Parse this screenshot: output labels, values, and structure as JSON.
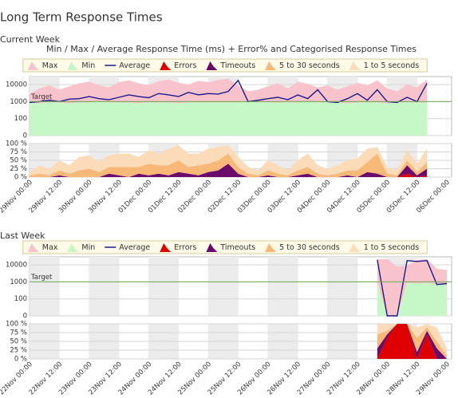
{
  "title": "Long Term Response Times",
  "chart_data": [
    {
      "type": "response",
      "heading": "Current Week",
      "title": "Min / Max / Average Response Time (ms) + Error% and Categorised Response Times",
      "categories": [
        "29Nov 00:00",
        null,
        null,
        "29Nov 12:00",
        null,
        null,
        "30Nov 00:00",
        null,
        null,
        "30Nov 12:00",
        null,
        null,
        "01Dec 00:00",
        null,
        null,
        "01Dec 12:00",
        null,
        null,
        "02Dec 00:00",
        null,
        null,
        "02Dec 12:00",
        null,
        null,
        "03Dec 00:00",
        null,
        null,
        "03Dec 12:00",
        null,
        null,
        "04Dec 00:00",
        null,
        null,
        "04Dec 12:00",
        null,
        null,
        "05Dec 00:00",
        null,
        null,
        "05Dec 12:00",
        null,
        null,
        "06Dec 00:00"
      ],
      "log_y": true,
      "grid": true,
      "ylim": [
        0,
        30000
      ],
      "yticks": [
        0,
        100,
        1000,
        10000
      ],
      "y2lim": [
        0,
        100
      ],
      "y2ticks": [
        {
          "value": 0,
          "label": "0 %"
        },
        {
          "value": 25,
          "label": "25 %"
        },
        {
          "value": 50,
          "label": "50 %"
        },
        {
          "value": 75,
          "label": "75 %"
        },
        {
          "value": 100,
          "label": "100 %"
        }
      ],
      "target": 1000,
      "target_label": "Target",
      "target_color": "#6aa84f",
      "series": [
        {
          "name": "Max",
          "style": "area",
          "color": "#f9c3cb",
          "values": [
            3000,
            6000,
            9000,
            5000,
            8000,
            12000,
            15000,
            9000,
            7000,
            14000,
            18000,
            12000,
            9000,
            16000,
            20000,
            13000,
            10000,
            17000,
            14000,
            19000,
            22000,
            9000,
            4000,
            5000,
            8000,
            12000,
            6000,
            15000,
            11000,
            7000,
            9000,
            5000,
            8000,
            13000,
            9000,
            18000,
            6000,
            4000,
            10000,
            7000,
            20000,
            null,
            null
          ]
        },
        {
          "name": "Min",
          "style": "area",
          "color": "#c6f7c6",
          "values": [
            900,
            800,
            900,
            900,
            800,
            900,
            900,
            1000,
            900,
            900,
            900,
            800,
            900,
            900,
            900,
            800,
            900,
            900,
            900,
            900,
            900,
            900,
            1000,
            900,
            900,
            900,
            900,
            900,
            1000,
            900,
            900,
            900,
            800,
            900,
            900,
            900,
            800,
            900,
            900,
            900,
            900,
            null,
            null
          ]
        },
        {
          "name": "Average",
          "style": "line",
          "color": "#1a1a8c",
          "values": [
            900,
            1000,
            1200,
            1000,
            1400,
            1500,
            2000,
            1500,
            1300,
            1800,
            2500,
            2000,
            1700,
            3000,
            2500,
            2000,
            3500,
            2500,
            3000,
            2800,
            4000,
            18000,
            1000,
            1200,
            1500,
            1800,
            1300,
            2500,
            1500,
            5000,
            1000,
            900,
            1500,
            3000,
            1200,
            5000,
            1000,
            900,
            1800,
            1000,
            12000,
            null,
            null
          ]
        },
        {
          "name": "Errors",
          "style": "area",
          "axis": "y2",
          "color": "#e00000",
          "values": [
            0,
            0,
            0,
            0,
            0,
            0,
            0,
            0,
            0,
            0,
            0,
            0,
            0,
            0,
            0,
            0,
            0,
            0,
            0,
            0,
            0,
            0,
            0,
            0,
            0,
            0,
            0,
            0,
            0,
            0,
            0,
            0,
            0,
            0,
            0,
            0,
            0,
            0,
            10,
            0,
            5,
            null,
            null
          ]
        },
        {
          "name": "Timeouts",
          "style": "area",
          "axis": "y2",
          "color": "#6b0a6b",
          "values": [
            0,
            0,
            0,
            5,
            0,
            0,
            0,
            0,
            10,
            5,
            0,
            10,
            5,
            10,
            5,
            15,
            10,
            5,
            15,
            20,
            40,
            10,
            0,
            0,
            5,
            0,
            0,
            5,
            10,
            0,
            0,
            0,
            5,
            0,
            15,
            10,
            0,
            0,
            25,
            5,
            20,
            null,
            null
          ]
        },
        {
          "name": "5 to 30 seconds",
          "style": "area",
          "axis": "y2",
          "color": "#f8b878",
          "values": [
            5,
            10,
            5,
            15,
            10,
            20,
            25,
            15,
            20,
            25,
            30,
            20,
            35,
            25,
            30,
            35,
            20,
            30,
            25,
            30,
            30,
            20,
            10,
            5,
            15,
            10,
            5,
            15,
            20,
            10,
            5,
            10,
            15,
            20,
            30,
            60,
            10,
            5,
            15,
            10,
            20,
            null,
            null
          ]
        },
        {
          "name": "1 to 5 seconds",
          "style": "area",
          "axis": "y2",
          "color": "#fcdcb8",
          "values": [
            10,
            25,
            20,
            30,
            25,
            40,
            40,
            30,
            35,
            40,
            40,
            30,
            40,
            35,
            50,
            45,
            40,
            35,
            45,
            40,
            25,
            30,
            20,
            15,
            30,
            25,
            15,
            30,
            40,
            25,
            20,
            25,
            30,
            35,
            40,
            20,
            20,
            15,
            30,
            25,
            40,
            null,
            null
          ]
        }
      ]
    },
    {
      "type": "response",
      "heading": "Last Week",
      "categories": [
        "22Nov 00:00",
        null,
        null,
        "22Nov 12:00",
        null,
        null,
        "23Nov 00:00",
        null,
        null,
        "23Nov 12:00",
        null,
        null,
        "24Nov 00:00",
        null,
        null,
        "24Nov 12:00",
        null,
        null,
        "25Nov 00:00",
        null,
        null,
        "25Nov 12:00",
        null,
        null,
        "26Nov 00:00",
        null,
        null,
        "26Nov 12:00",
        null,
        null,
        "27Nov 00:00",
        null,
        null,
        "27Nov 12:00",
        null,
        null,
        "28Nov 00:00",
        null,
        null,
        "28Nov 12:00",
        null,
        null,
        "29Nov 00:00"
      ],
      "log_y": true,
      "grid": true,
      "ylim": [
        0,
        30000
      ],
      "yticks": [
        0,
        100,
        1000,
        10000
      ],
      "y2lim": [
        0,
        100
      ],
      "y2ticks": [
        {
          "value": 0,
          "label": "0 %"
        },
        {
          "value": 25,
          "label": "25 %"
        },
        {
          "value": 50,
          "label": "50 %"
        },
        {
          "value": 75,
          "label": "75 %"
        },
        {
          "value": 100,
          "label": "100 %"
        }
      ],
      "target": 1000,
      "target_label": "Target",
      "target_color": "#6aa84f",
      "series": [
        {
          "name": "Max",
          "style": "area",
          "color": "#f9c3cb",
          "values": [
            null,
            null,
            null,
            null,
            null,
            null,
            null,
            null,
            null,
            null,
            null,
            null,
            null,
            null,
            null,
            null,
            null,
            null,
            null,
            null,
            null,
            null,
            null,
            null,
            null,
            null,
            null,
            null,
            null,
            null,
            null,
            null,
            null,
            null,
            null,
            22000,
            22000,
            8000,
            9000,
            20000,
            22000,
            6000,
            5000
          ]
        },
        {
          "name": "Min",
          "style": "area",
          "color": "#c6f7c6",
          "values": [
            null,
            null,
            null,
            null,
            null,
            null,
            null,
            null,
            null,
            null,
            null,
            null,
            null,
            null,
            null,
            null,
            null,
            null,
            null,
            null,
            null,
            null,
            null,
            null,
            null,
            null,
            null,
            null,
            null,
            null,
            null,
            null,
            null,
            null,
            null,
            1000,
            0,
            0,
            900,
            800,
            900,
            700,
            700
          ]
        },
        {
          "name": "Average",
          "style": "line",
          "color": "#1a1a8c",
          "values": [
            null,
            null,
            null,
            null,
            null,
            null,
            null,
            null,
            null,
            null,
            null,
            null,
            null,
            null,
            null,
            null,
            null,
            null,
            null,
            null,
            null,
            null,
            null,
            null,
            null,
            null,
            null,
            null,
            null,
            null,
            null,
            null,
            null,
            null,
            null,
            20000,
            0,
            0,
            18000,
            16000,
            18000,
            700,
            800
          ]
        },
        {
          "name": "Errors",
          "style": "area",
          "axis": "y2",
          "color": "#e00000",
          "values": [
            null,
            null,
            null,
            null,
            null,
            null,
            null,
            null,
            null,
            null,
            null,
            null,
            null,
            null,
            null,
            null,
            null,
            null,
            null,
            null,
            null,
            null,
            null,
            null,
            null,
            null,
            null,
            null,
            null,
            null,
            null,
            null,
            null,
            null,
            null,
            0,
            60,
            100,
            100,
            0,
            70,
            0,
            0
          ]
        },
        {
          "name": "Timeouts",
          "style": "area",
          "axis": "y2",
          "color": "#6b0a6b",
          "values": [
            null,
            null,
            null,
            null,
            null,
            null,
            null,
            null,
            null,
            null,
            null,
            null,
            null,
            null,
            null,
            null,
            null,
            null,
            null,
            null,
            null,
            null,
            null,
            null,
            null,
            null,
            null,
            null,
            null,
            null,
            null,
            null,
            null,
            null,
            null,
            30,
            10,
            0,
            0,
            20,
            10,
            30,
            0
          ]
        },
        {
          "name": "5 to 30 seconds",
          "style": "area",
          "axis": "y2",
          "color": "#f8b878",
          "values": [
            null,
            null,
            null,
            null,
            null,
            null,
            null,
            null,
            null,
            null,
            null,
            null,
            null,
            null,
            null,
            null,
            null,
            null,
            null,
            null,
            null,
            null,
            null,
            null,
            null,
            null,
            null,
            null,
            null,
            null,
            null,
            null,
            null,
            null,
            null,
            40,
            10,
            0,
            0,
            40,
            10,
            20,
            10
          ]
        },
        {
          "name": "1 to 5 seconds",
          "style": "area",
          "axis": "y2",
          "color": "#fcdcb8",
          "values": [
            null,
            null,
            null,
            null,
            null,
            null,
            null,
            null,
            null,
            null,
            null,
            null,
            null,
            null,
            null,
            null,
            null,
            null,
            null,
            null,
            null,
            null,
            null,
            null,
            null,
            null,
            null,
            null,
            null,
            null,
            null,
            null,
            null,
            null,
            null,
            30,
            20,
            0,
            0,
            30,
            10,
            40,
            20
          ]
        }
      ]
    }
  ]
}
